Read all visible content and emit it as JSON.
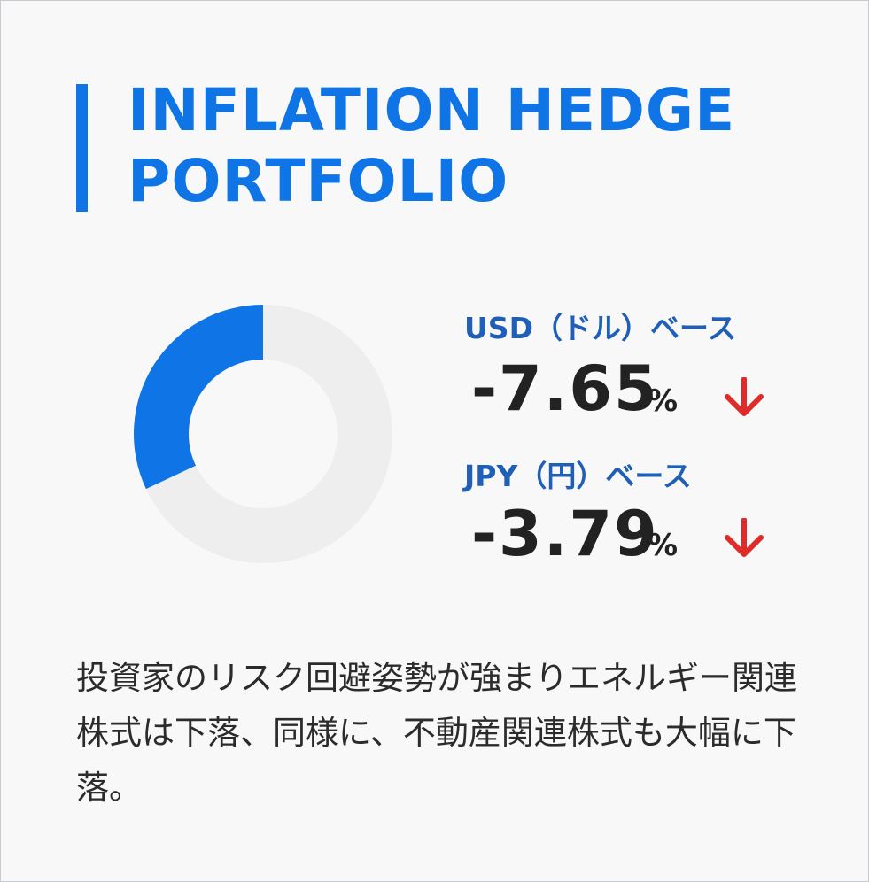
{
  "header": {
    "title_line1": "INFLATION HEDGE",
    "title_line2": "PORTFOLIO"
  },
  "donut": {
    "highlight_fraction": 0.32,
    "highlight_color": "#0f74e6",
    "rest_color": "#eeeeee"
  },
  "stats": [
    {
      "label": "USD（ドル）ベース",
      "value": "-7.65",
      "unit": "%",
      "direction": "down-arrow-icon"
    },
    {
      "label": "JPY（円）ベース",
      "value": "-3.79",
      "unit": "%",
      "direction": "down-arrow-icon"
    }
  ],
  "colors": {
    "accent": "#0f74e6",
    "label": "#1f5fb8",
    "down": "#e02b2b"
  },
  "description": "投資家のリスク回避姿勢が強まりエネルギー関連株式は下落、同様に、不動産関連株式も大幅に下落。"
}
